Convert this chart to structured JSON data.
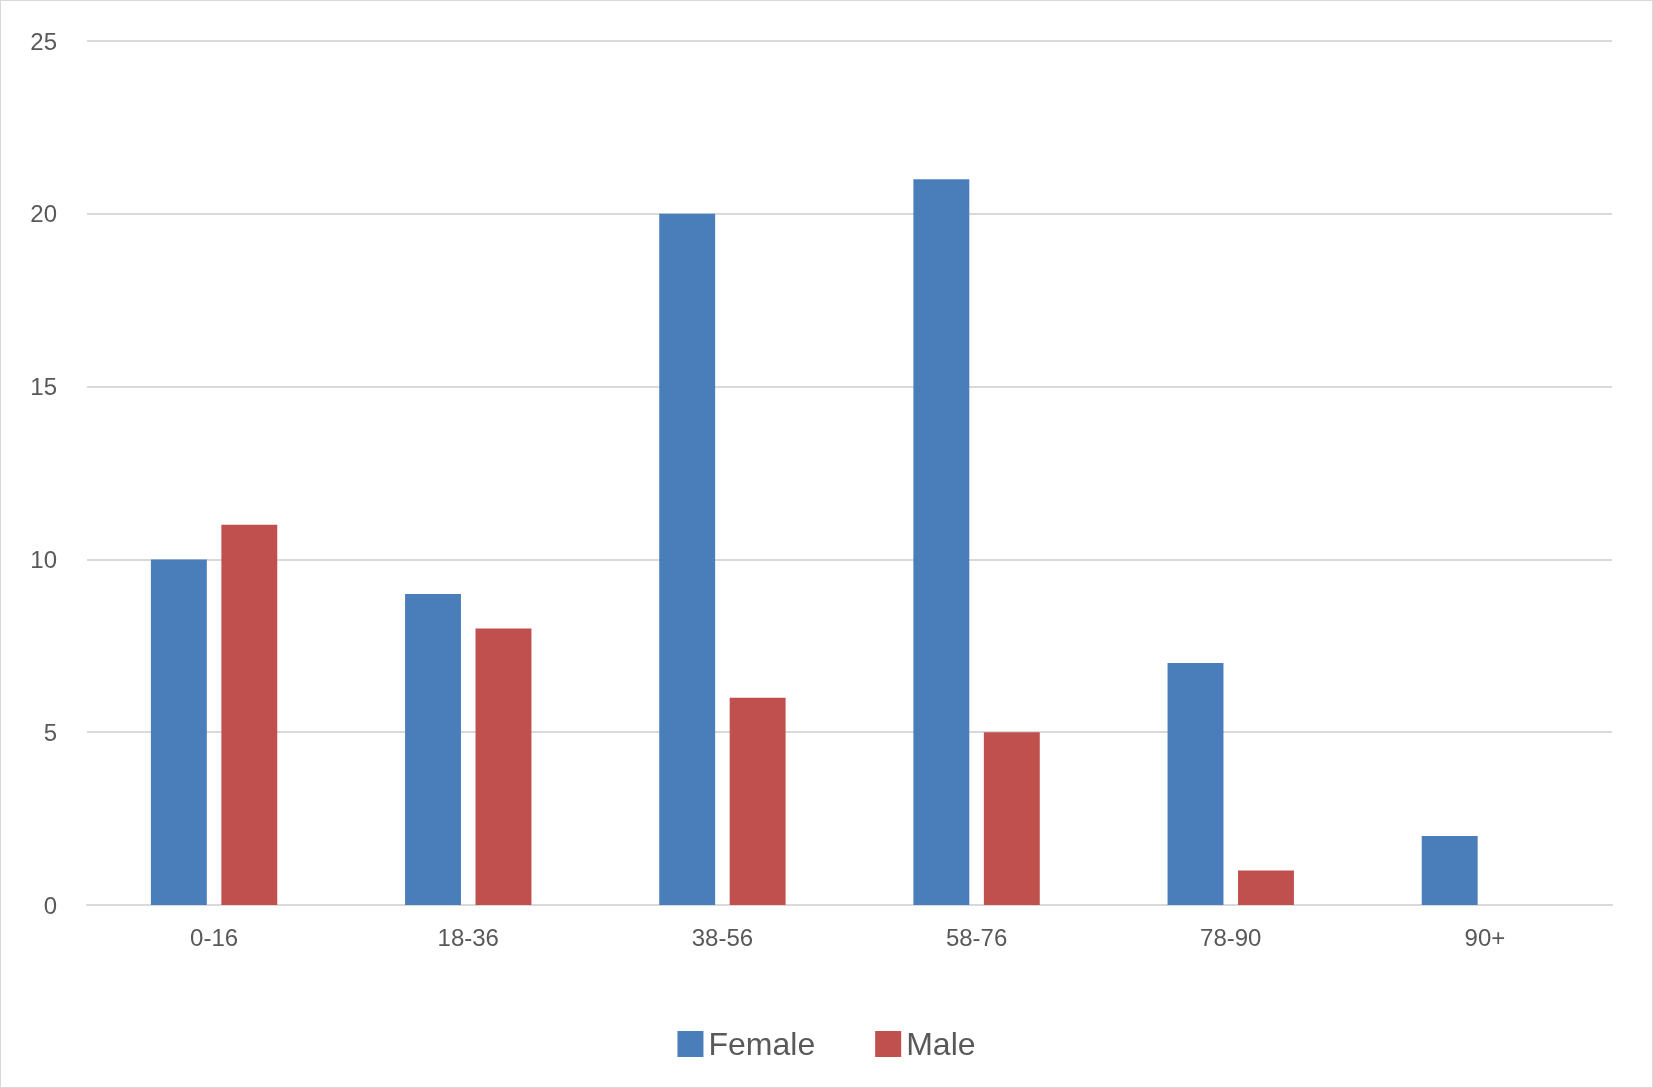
{
  "chart_data": {
    "type": "bar",
    "categories": [
      "0-16",
      "18-36",
      "38-56",
      "58-76",
      "78-90",
      "90+"
    ],
    "series": [
      {
        "name": "Female",
        "color": "#4a7ebb",
        "values": [
          10,
          9,
          20,
          21,
          7,
          2
        ]
      },
      {
        "name": "Male",
        "color": "#c0504d",
        "values": [
          11,
          8,
          6,
          5,
          1,
          0
        ]
      }
    ],
    "ylim": [
      0,
      25
    ],
    "yticks": [
      0,
      5,
      10,
      15,
      20,
      25
    ],
    "grid": "y",
    "legend": "bottom"
  }
}
